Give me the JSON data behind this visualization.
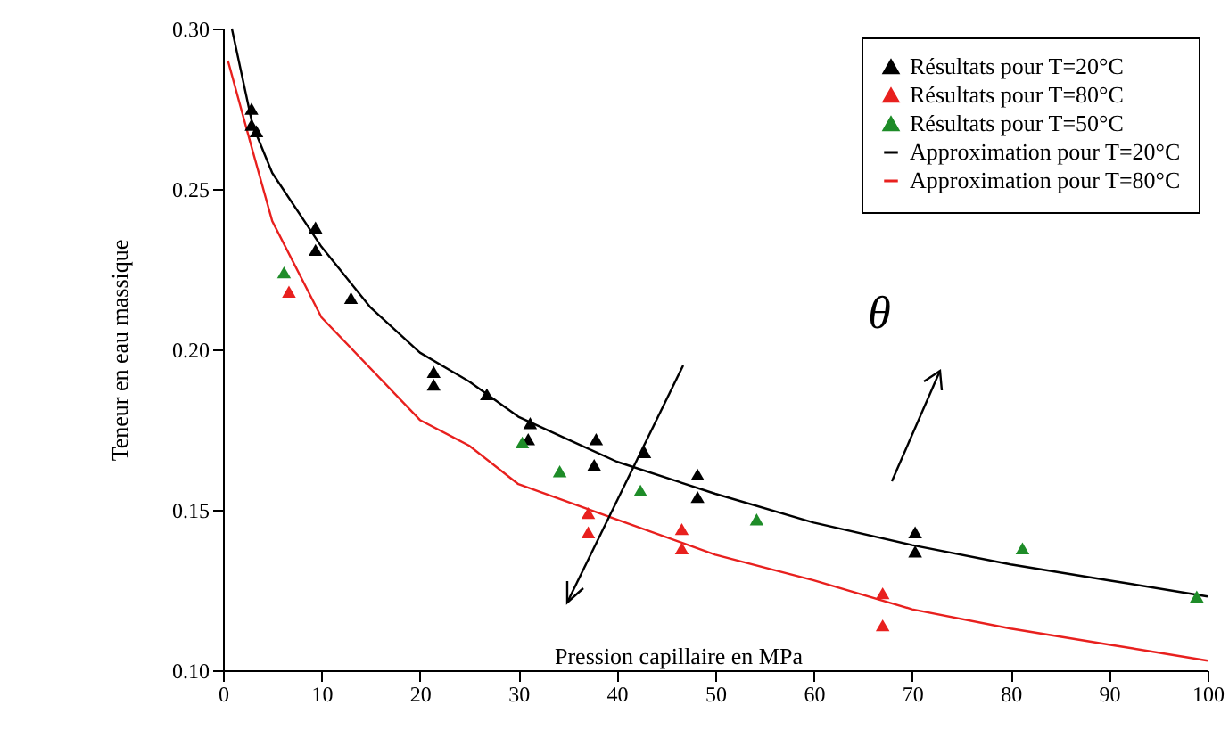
{
  "chart_data": {
    "type": "scatter",
    "xlabel": "Pression capillaire en MPa",
    "ylabel": "Teneur en eau massique",
    "xlim": [
      0,
      100
    ],
    "xticks": [
      0,
      10,
      20,
      30,
      40,
      50,
      60,
      70,
      80,
      90,
      100
    ],
    "ylim": [
      0.1,
      0.3
    ],
    "yticks": [
      {
        "value": 0.1,
        "label": "0.10"
      },
      0.15,
      {
        "value": 0.2,
        "label": "0.20"
      },
      0.25,
      {
        "value": 0.3,
        "label": "0.30"
      }
    ],
    "grid": false,
    "legend": "top right",
    "annotations": [
      "θ"
    ],
    "series": [
      {
        "name": "Résultats pour T=20°C",
        "marker": "triangle",
        "color": "#000000",
        "x": [
          2.9,
          2.9,
          3.4,
          9.4,
          9.4,
          13,
          21.4,
          21.4,
          26.8,
          31.2,
          31,
          37.9,
          37.7,
          42.8,
          48.2,
          48.2,
          70.3,
          70.3
        ],
        "values": [
          0.275,
          0.27,
          0.268,
          0.238,
          0.231,
          0.216,
          0.193,
          0.189,
          0.186,
          0.177,
          0.172,
          0.172,
          0.164,
          0.168,
          0.161,
          0.154,
          0.143,
          0.137
        ]
      },
      {
        "name": "Résultats pour T=80°C",
        "marker": "triangle",
        "color": "#e8201e",
        "x": [
          6.7,
          37.1,
          37.1,
          46.6,
          46.6,
          67.0,
          67.0
        ],
        "values": [
          0.218,
          0.149,
          0.143,
          0.144,
          0.138,
          0.124,
          0.114
        ]
      },
      {
        "name": "Résultats pour T=50°C",
        "marker": "triangle",
        "color": "#1e8c28",
        "x": [
          6.2,
          30.4,
          34.2,
          42.4,
          54.2,
          81.2,
          98.9
        ],
        "values": [
          0.224,
          0.171,
          0.162,
          0.156,
          0.147,
          0.138,
          0.123
        ]
      },
      {
        "name": "Approximation pour T=20°C",
        "type": "line",
        "marker": "none",
        "color": "#000000",
        "x": [
          0.9,
          3,
          5,
          10,
          15,
          20,
          25,
          30,
          35,
          40,
          50,
          60,
          70,
          80,
          90,
          100
        ],
        "values": [
          0.3,
          0.27,
          0.255,
          0.232,
          0.213,
          0.199,
          0.19,
          0.179,
          0.172,
          0.165,
          0.155,
          0.146,
          0.139,
          0.133,
          0.128,
          0.123
        ]
      },
      {
        "name": "Approximation pour T=80°C",
        "type": "line",
        "marker": "none",
        "color": "#e8201e",
        "x": [
          0.5,
          3,
          5,
          10,
          20,
          25,
          30,
          40,
          50,
          60,
          70,
          80,
          90,
          100
        ],
        "values": [
          0.29,
          0.262,
          0.24,
          0.21,
          0.178,
          0.17,
          0.158,
          0.147,
          0.136,
          0.128,
          0.119,
          0.113,
          0.108,
          0.103
        ]
      }
    ]
  }
}
